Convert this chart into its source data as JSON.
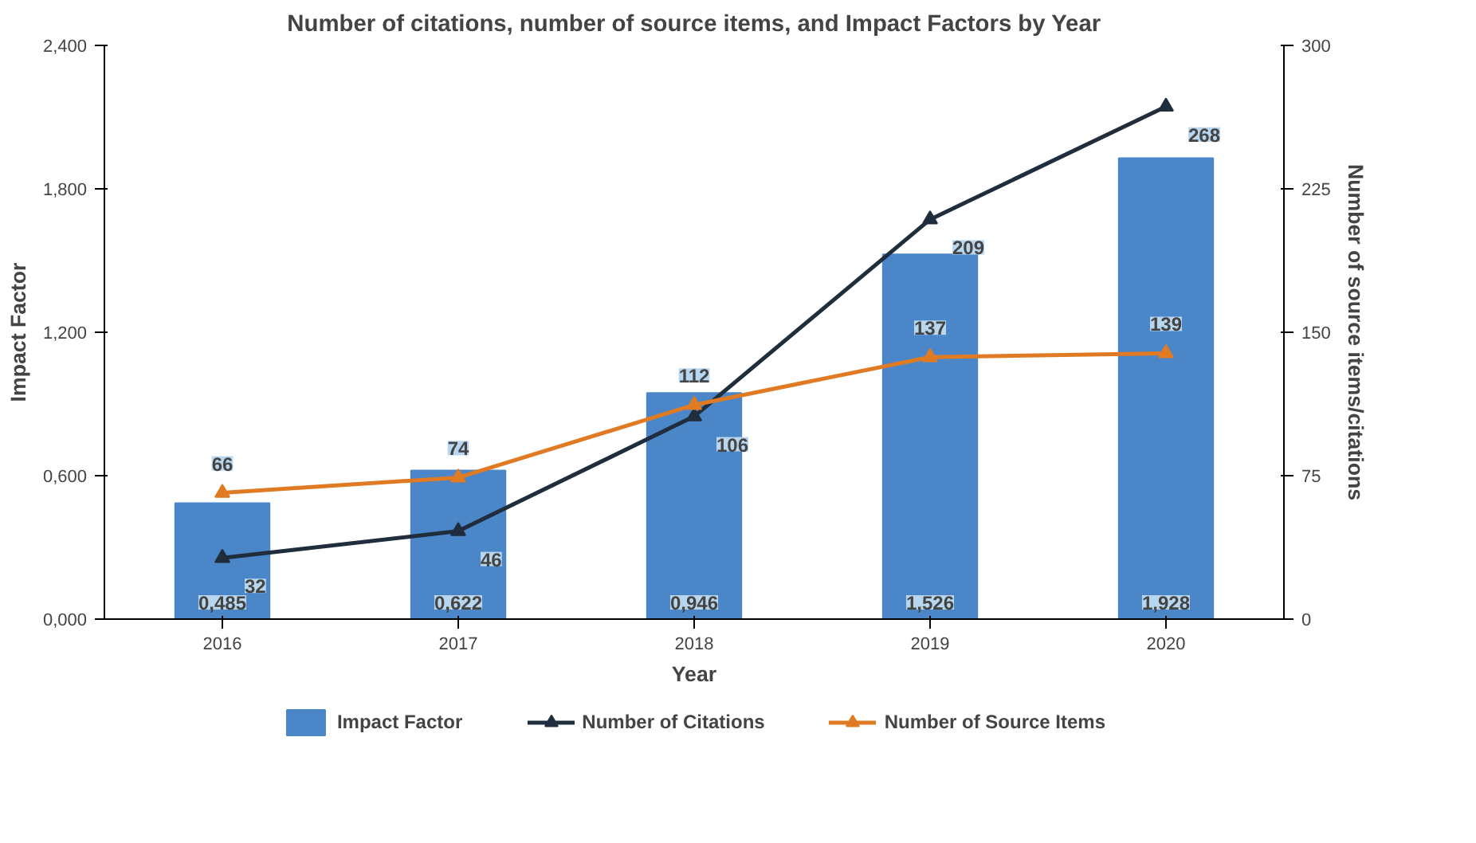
{
  "chart_data": {
    "type": "bar",
    "title": "Number of citations, number of source items, and Impact Factors by Year",
    "xlabel": "Year",
    "ylabel": "Impact Factor",
    "y2label": "Number of source items/citations",
    "categories": [
      "2016",
      "2017",
      "2018",
      "2019",
      "2020"
    ],
    "series": [
      {
        "name": "Impact Factor",
        "color": "#4a86c8",
        "values": [
          0.485,
          0.622,
          0.946,
          1.526,
          1.928
        ],
        "value_labels": [
          "0,485",
          "0,622",
          "0,946",
          "1,526",
          "1,928"
        ]
      },
      {
        "name": "Number of Citations",
        "type": "line",
        "axis": "y2",
        "color": "#1f2d3d",
        "marker": "triangle",
        "values": [
          32,
          46,
          106,
          209,
          268
        ],
        "value_labels": [
          "32",
          "46",
          "106",
          "209",
          "268"
        ]
      },
      {
        "name": "Number of Source Items",
        "type": "line",
        "axis": "y2",
        "color": "#e07b24",
        "marker": "triangle",
        "values": [
          66,
          74,
          112,
          137,
          139
        ],
        "value_labels": [
          "66",
          "74",
          "112",
          "137",
          "139"
        ]
      }
    ],
    "ylim": [
      0,
      2.4
    ],
    "yticks": [
      {
        "value": 0,
        "label": "0,000"
      },
      {
        "value": 0.6,
        "label": "0,600"
      },
      {
        "value": 1.2,
        "label": "1,200"
      },
      {
        "value": 1.8,
        "label": "1,800"
      },
      {
        "value": 2.4,
        "label": "2,400"
      }
    ],
    "y2lim": [
      0,
      300
    ],
    "y2ticks": [
      0,
      75,
      150,
      225,
      300
    ],
    "grid": false,
    "legend": "bottom"
  }
}
